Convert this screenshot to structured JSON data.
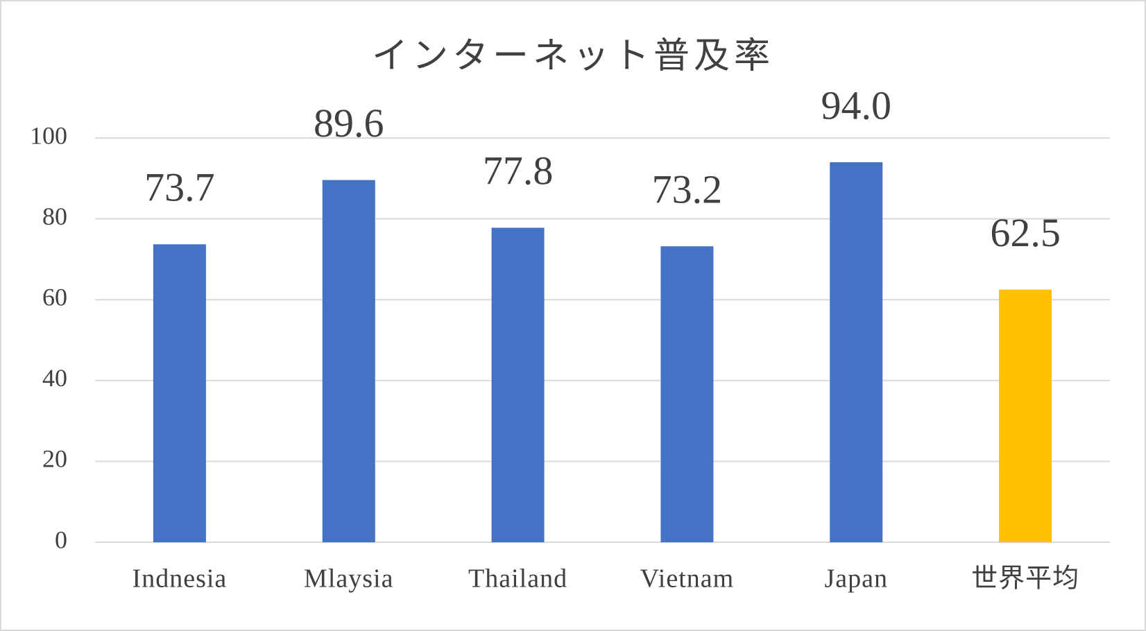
{
  "chart_data": {
    "type": "bar",
    "title": "インターネット普及率",
    "categories": [
      "Indnesia",
      "Mlaysia",
      "Thailand",
      "Vietnam",
      "Japan",
      "世界平均"
    ],
    "values": [
      73.7,
      89.6,
      77.8,
      73.2,
      94.0,
      62.5
    ],
    "value_labels": [
      "73.7",
      "89.6",
      "77.8",
      "73.2",
      "94.0",
      "62.5"
    ],
    "colors": [
      "#4472c4",
      "#4472c4",
      "#4472c4",
      "#4472c4",
      "#4472c4",
      "#ffc000"
    ],
    "ylim": [
      0,
      100
    ],
    "yticks": [
      0,
      20,
      40,
      60,
      80,
      100
    ],
    "grid": true
  }
}
